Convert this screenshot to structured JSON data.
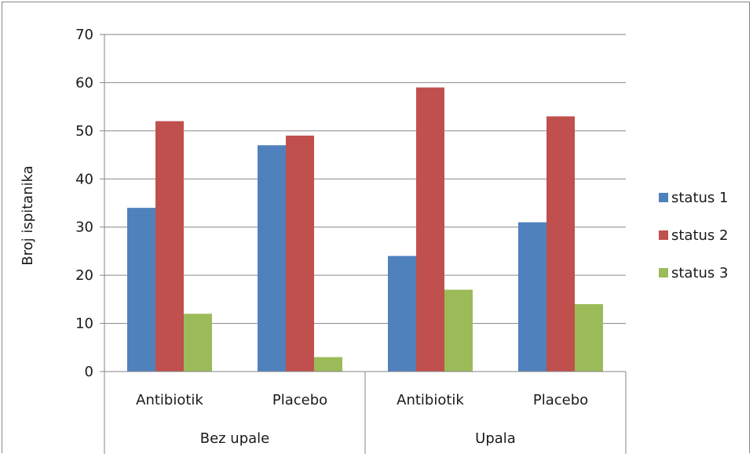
{
  "chart_data": {
    "type": "bar",
    "title": "",
    "ylabel": "Broj ispitanika",
    "xlabel": "",
    "ylim": [
      0,
      70
    ],
    "yticks": [
      0,
      10,
      20,
      30,
      40,
      50,
      60,
      70
    ],
    "grid": true,
    "legend_position": "right",
    "categories": [
      "Antibiotik",
      "Placebo",
      "Antibiotik",
      "Placebo"
    ],
    "groups": [
      {
        "label": "Bez upale",
        "categories": [
          "Antibiotik",
          "Placebo"
        ]
      },
      {
        "label": "Upala",
        "categories": [
          "Antibiotik",
          "Placebo"
        ]
      }
    ],
    "series": [
      {
        "name": "status 1",
        "color": "#4f81bd",
        "values": [
          34,
          47,
          24,
          31
        ]
      },
      {
        "name": "status 2",
        "color": "#c0504d",
        "values": [
          52,
          49,
          59,
          53
        ]
      },
      {
        "name": "status 3",
        "color": "#9bbb59",
        "values": [
          12,
          3,
          17,
          14
        ]
      }
    ]
  }
}
